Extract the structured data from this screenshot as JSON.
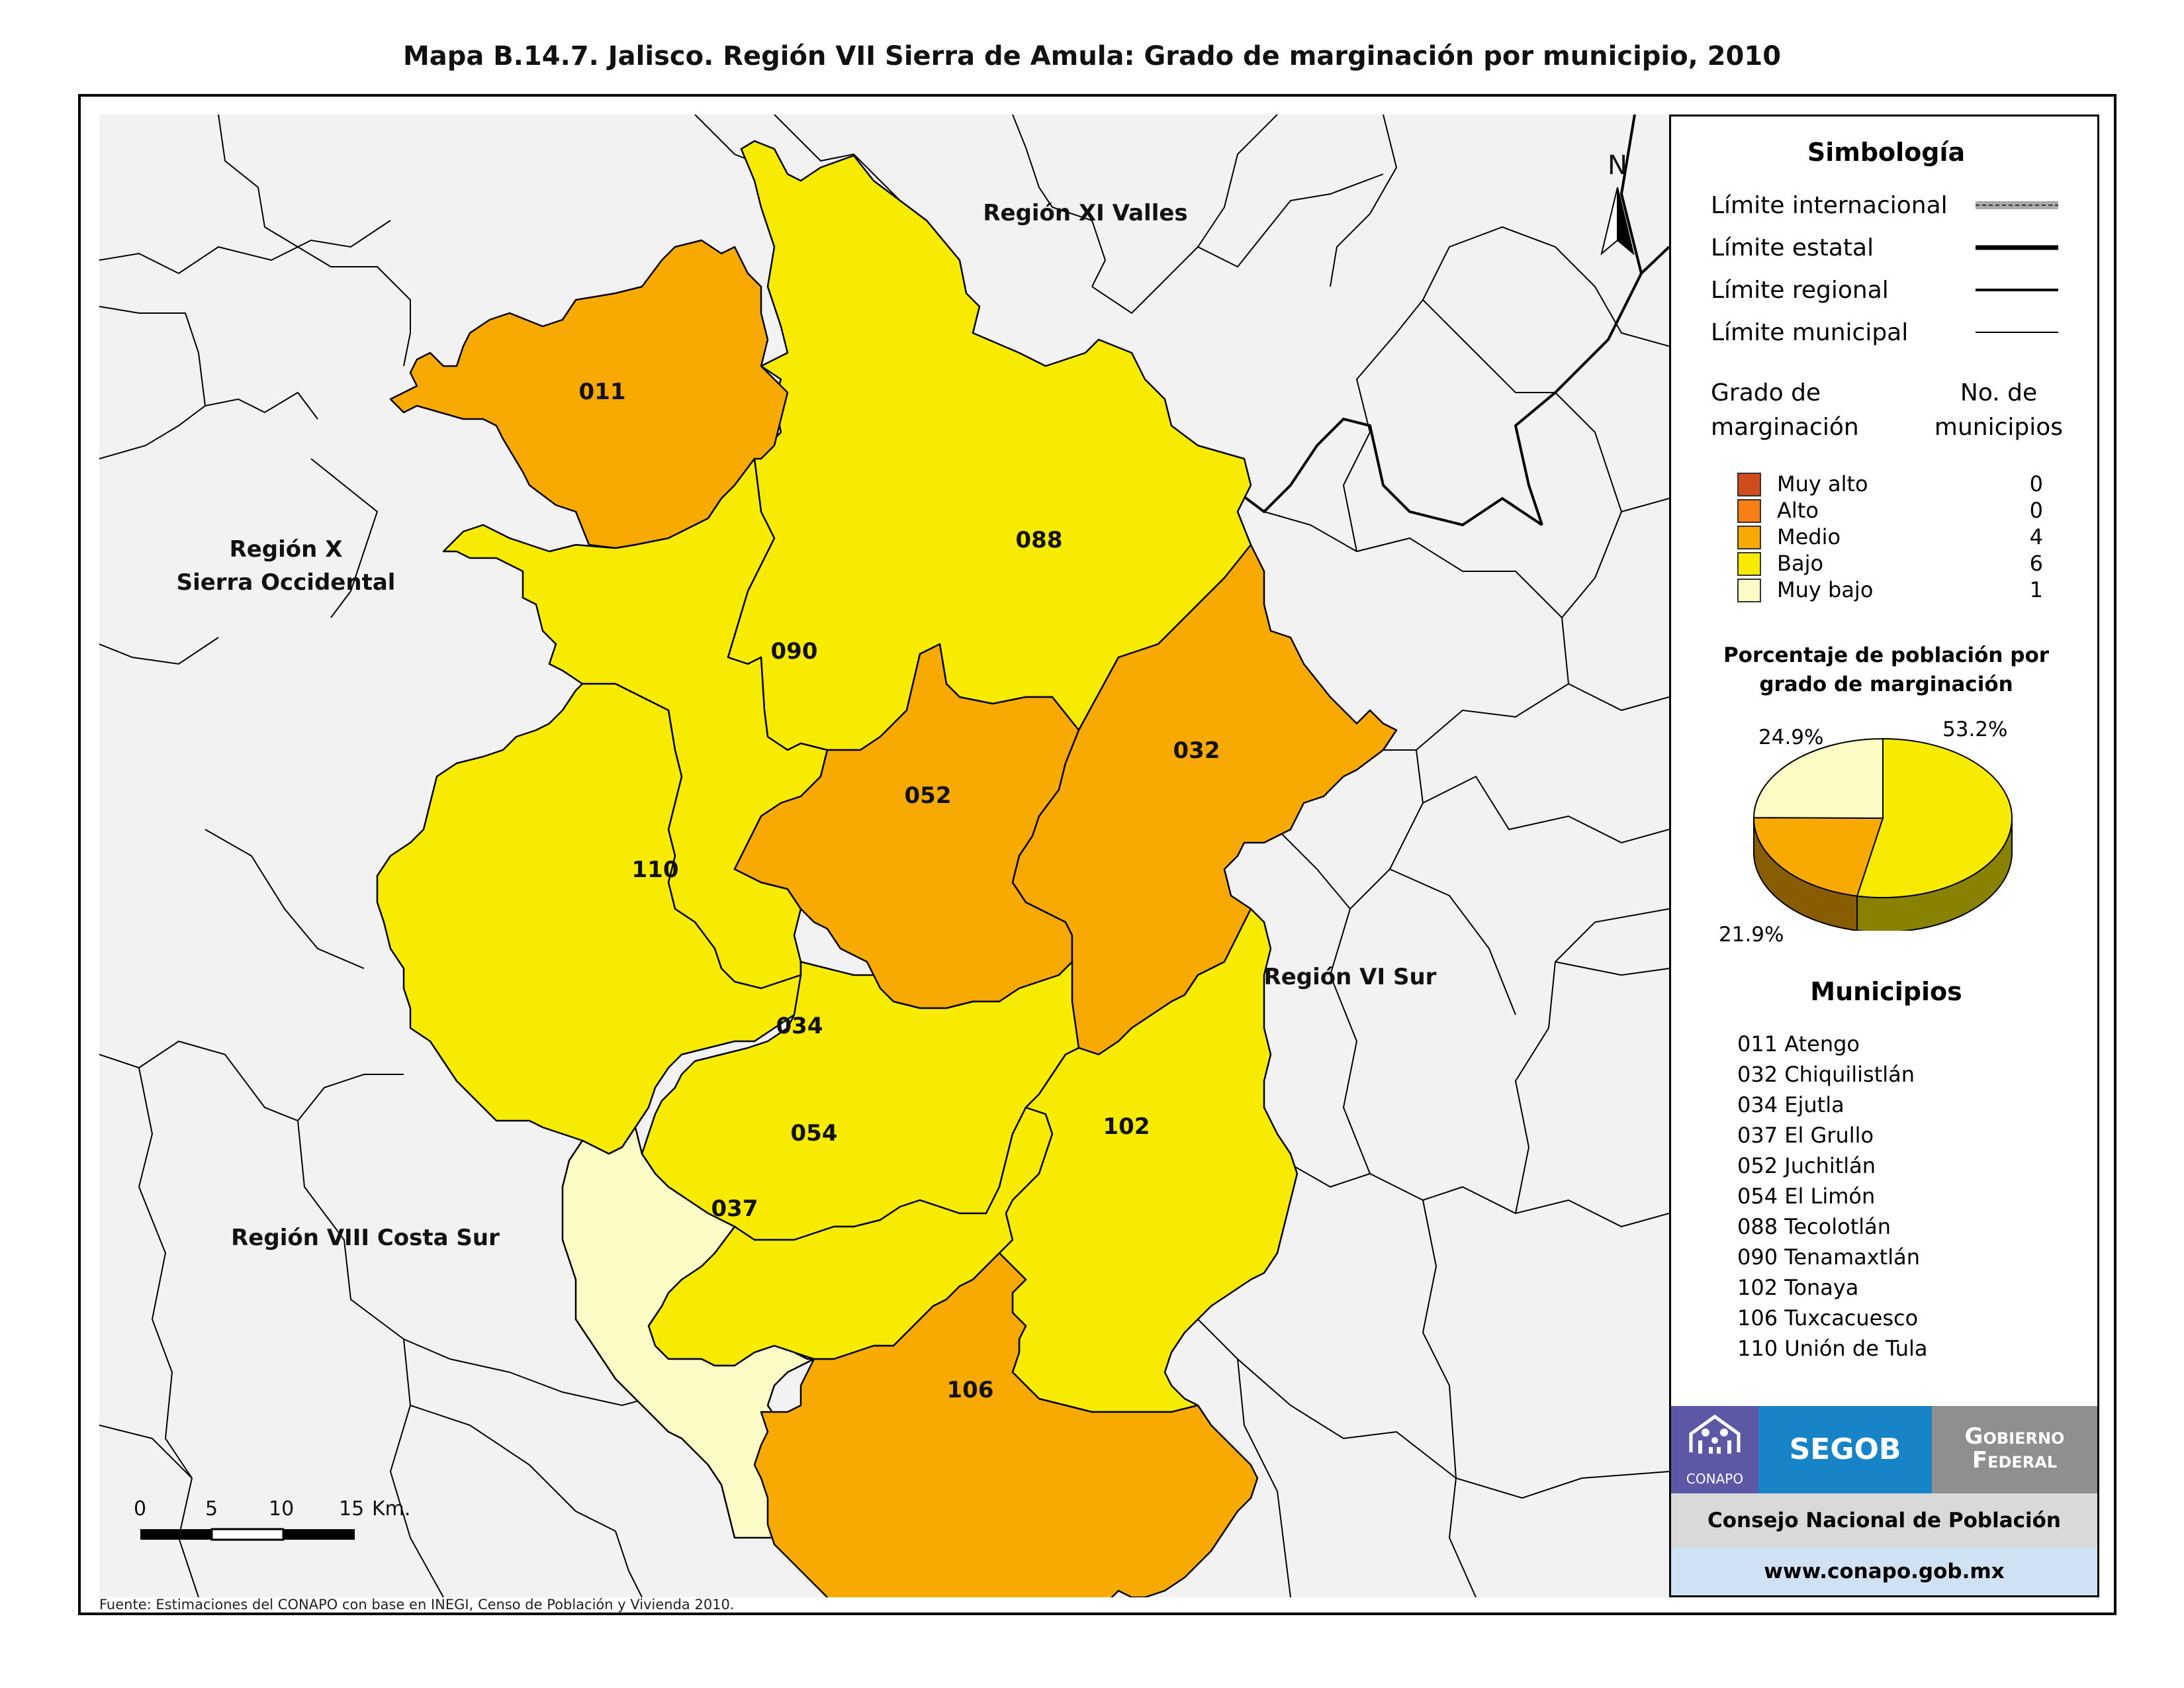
{
  "title": "Mapa B.14.7. Jalisco. Región VII Sierra de Amula: Grado de marginación por municipio, 2010",
  "source": "Fuente: Estimaciones del CONAPO con base en INEGI, Censo de Población y Vivienda 2010.",
  "map": {
    "north_label": "N",
    "regions": [
      {
        "id": "xi",
        "label": "Región XI Valles"
      },
      {
        "id": "x1",
        "label": "Región X"
      },
      {
        "id": "x2",
        "label": "Sierra Occidental"
      },
      {
        "id": "vi",
        "label": "Región VI Sur"
      },
      {
        "id": "viii",
        "label": "Región VIII Costa Sur"
      }
    ],
    "municipios": [
      {
        "code": "011",
        "grade": "Medio"
      },
      {
        "code": "088",
        "grade": "Bajo"
      },
      {
        "code": "090",
        "grade": "Bajo"
      },
      {
        "code": "052",
        "grade": "Medio"
      },
      {
        "code": "032",
        "grade": "Medio"
      },
      {
        "code": "110",
        "grade": "Bajo"
      },
      {
        "code": "034",
        "grade": "Bajo"
      },
      {
        "code": "054",
        "grade": "Bajo"
      },
      {
        "code": "102",
        "grade": "Bajo"
      },
      {
        "code": "037",
        "grade": "Muy bajo"
      },
      {
        "code": "106",
        "grade": "Medio"
      }
    ],
    "scale": {
      "ticks": [
        "0",
        "5",
        "10",
        "15"
      ],
      "unit": "Km."
    }
  },
  "legend": {
    "title": "Simbología",
    "limits": [
      {
        "label": "Límite internacional",
        "style": "international"
      },
      {
        "label": "Límite estatal",
        "style": "state"
      },
      {
        "label": "Límite regional",
        "style": "regional"
      },
      {
        "label": "Límite municipal",
        "style": "municipal"
      }
    ],
    "header_grade": [
      "Grado de",
      "marginación"
    ],
    "header_count": [
      "No. de",
      "municipios"
    ],
    "classes": [
      {
        "label": "Muy alto",
        "count": "0",
        "color": "#d04c1c"
      },
      {
        "label": "Alto",
        "count": "0",
        "color": "#f97e16"
      },
      {
        "label": "Medio",
        "count": "4",
        "color": "#f8a902"
      },
      {
        "label": "Bajo",
        "count": "6",
        "color": "#f7eb02"
      },
      {
        "label": "Muy bajo",
        "count": "1",
        "color": "#fdfbc6"
      }
    ],
    "pie": {
      "title_lines": [
        "Porcentaje de población por",
        "grado de marginación"
      ],
      "slices": [
        {
          "label": "Bajo",
          "value": 53.2,
          "text": "53.2%",
          "color": "#f7eb02"
        },
        {
          "label": "Medio",
          "value": 21.9,
          "text": "21.9%",
          "color": "#f8a902"
        },
        {
          "label": "Muy bajo",
          "value": 24.9,
          "text": "24.9%",
          "color": "#fdfbc6"
        }
      ]
    },
    "municipios_title": "Municipios",
    "municipios_list": [
      "011 Atengo",
      "032 Chiquilistlán",
      "034 Ejutla",
      "037 El Grullo",
      "052 Juchitlán",
      "054 El Limón",
      "088 Tecolotlán",
      "090 Tenamaxtlán",
      "102 Tonaya",
      "106 Tuxcacuesco",
      "110 Unión de Tula"
    ]
  },
  "footer": {
    "conapo": "CONAPO",
    "segob": "SEGOB",
    "gobierno": [
      "Gobierno",
      "Federal"
    ],
    "institution": "Consejo Nacional de Población",
    "url": "www.conapo.gob.mx"
  },
  "colors": {
    "background_region": "#f2f2f2",
    "boundary": "#000000"
  }
}
